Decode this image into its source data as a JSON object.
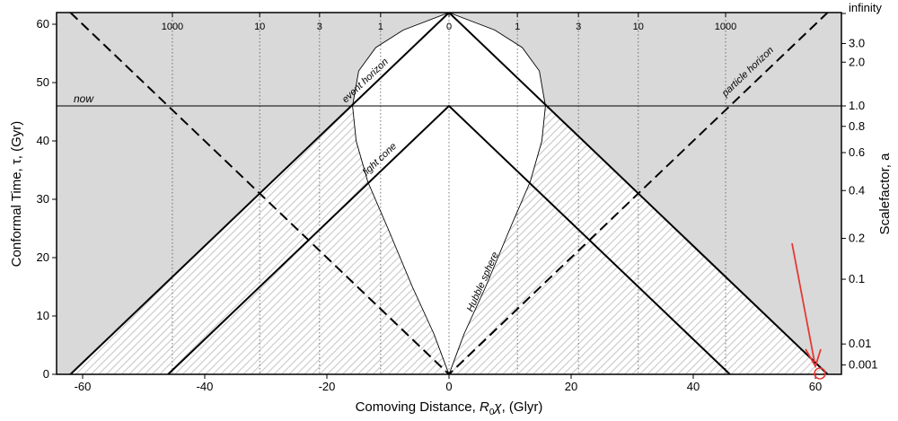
{
  "chart_data": {
    "type": "line",
    "xlabel_prefix": "Comoving Distance, ",
    "xlabel_var": "R",
    "xlabel_sub": "0",
    "xlabel_chi": "χ",
    "xlabel_suffix": ", (Glyr)",
    "ylabel": "Conformal Time, τ, (Gyr)",
    "ylabel_right": "Scalefactor, a",
    "xlim": [
      -64,
      64
    ],
    "ylim": [
      0,
      62
    ],
    "x_ticks": [
      -60,
      -40,
      -20,
      0,
      20,
      40,
      60
    ],
    "x_tick_labels": [
      "-60",
      "-40",
      "-20",
      "0",
      "20",
      "40",
      "60"
    ],
    "y_ticks": [
      0,
      10,
      20,
      30,
      40,
      50,
      60
    ],
    "y_tick_labels": [
      "0",
      "10",
      "20",
      "30",
      "40",
      "50",
      "60"
    ],
    "right_ticks": [
      {
        "label": "infinity",
        "tau": 62.5
      },
      {
        "label": "3.0",
        "tau": 56.7
      },
      {
        "label": "2.0",
        "tau": 53.5
      },
      {
        "label": "1.0",
        "tau": 46.0
      },
      {
        "label": "0.8",
        "tau": 42.5
      },
      {
        "label": "0.6",
        "tau": 38.0
      },
      {
        "label": "0.4",
        "tau": 31.5
      },
      {
        "label": "0.2",
        "tau": 23.3
      },
      {
        "label": "0.1",
        "tau": 16.3
      },
      {
        "label": "0.01",
        "tau": 5.2
      },
      {
        "label": "0.001",
        "tau": 1.6
      }
    ],
    "redshift_ticks": [
      {
        "label": "1000",
        "x": -45.3
      },
      {
        "label": "10",
        "x": -31.0
      },
      {
        "label": "3",
        "x": -21.2
      },
      {
        "label": "1",
        "x": -11.2
      },
      {
        "label": "0",
        "x": 0
      },
      {
        "label": "1",
        "x": 11.2
      },
      {
        "label": "3",
        "x": 21.2
      },
      {
        "label": "10",
        "x": 31.0
      },
      {
        "label": "1000",
        "x": 45.3
      }
    ],
    "now_tau": 46,
    "now_label": "now",
    "tau_max": 62,
    "event_horizon": [
      [
        -62,
        0
      ],
      [
        0,
        62
      ],
      [
        62,
        0
      ]
    ],
    "light_cone": [
      [
        -46,
        0
      ],
      [
        0,
        46
      ],
      [
        46,
        0
      ]
    ],
    "particle_horizon": [
      [
        -62,
        62
      ],
      [
        0,
        0
      ],
      [
        62,
        62
      ]
    ],
    "hubble_sphere": [
      [
        0,
        0
      ],
      [
        2.5,
        7
      ],
      [
        6,
        15
      ],
      [
        10,
        25
      ],
      [
        13.3,
        33
      ],
      [
        15.2,
        40
      ],
      [
        15.8,
        46
      ],
      [
        14.8,
        52
      ],
      [
        12,
        56
      ],
      [
        7.5,
        59
      ],
      [
        0,
        62
      ]
    ],
    "annotations": {
      "event_horizon": "event horizon",
      "light_cone": "light cone",
      "hubble_sphere": "Hubble sphere",
      "particle_horizon": "particle horizon"
    },
    "colors": {
      "background_region": "#d9d9d9",
      "hatch": "#bdbdbd",
      "lines": "#000000",
      "marker": "#e53935"
    },
    "grid": "dotted vertical at redshift ticks"
  }
}
